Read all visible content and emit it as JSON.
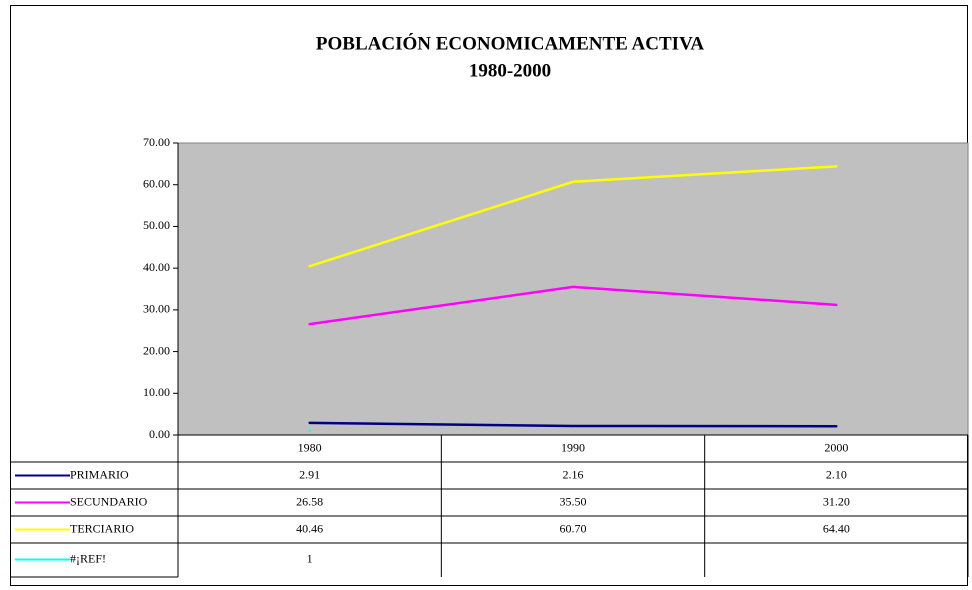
{
  "chart_data": {
    "type": "line",
    "title": "POBLACIÓN ECONOMICAMENTE ACTIVA",
    "subtitle": "1980-2000",
    "categories": [
      "1980",
      "1990",
      "2000"
    ],
    "series": [
      {
        "name": "PRIMARIO",
        "color": "#000080",
        "values": [
          2.91,
          2.16,
          2.1
        ],
        "value_labels": [
          "2.91",
          "2.16",
          "2.10"
        ]
      },
      {
        "name": "SECUNDARIO",
        "color": "#ff00ff",
        "values": [
          26.58,
          35.5,
          31.2
        ],
        "value_labels": [
          "26.58",
          "35.50",
          "31.20"
        ]
      },
      {
        "name": "TERCIARIO",
        "color": "#ffff00",
        "values": [
          40.46,
          60.7,
          64.4
        ],
        "value_labels": [
          "40.46",
          "60.70",
          "64.40"
        ]
      },
      {
        "name": "#¡REF!",
        "color": "#00ffff",
        "values": [
          1,
          null,
          null
        ]
      }
    ],
    "ylim": [
      0,
      70
    ],
    "yticks": [
      {
        "value": 0,
        "label": "0.00"
      },
      {
        "value": 10,
        "label": "10.00"
      },
      {
        "value": 20,
        "label": "20.00"
      },
      {
        "value": 30,
        "label": "30.00"
      },
      {
        "value": 40,
        "label": "40.00"
      },
      {
        "value": 50,
        "label": "50.00"
      },
      {
        "value": 60,
        "label": "60.00"
      },
      {
        "value": 70,
        "label": "70.00"
      }
    ],
    "grid": false,
    "plot_background": "#c0c0c0"
  }
}
